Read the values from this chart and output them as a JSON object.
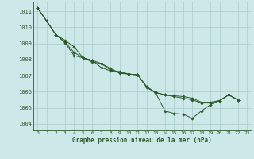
{
  "title": "Graphe pression niveau de la mer (hPa)",
  "background_color": "#cce8e8",
  "grid_color": "#aacccc",
  "line_color": "#2d5a2d",
  "marker_color": "#2d5a2d",
  "xlim": [
    -0.5,
    23.5
  ],
  "ylim": [
    1003.6,
    1011.6
  ],
  "yticks": [
    1004,
    1005,
    1006,
    1007,
    1008,
    1009,
    1010,
    1011
  ],
  "xticks": [
    0,
    1,
    2,
    3,
    4,
    5,
    6,
    7,
    8,
    9,
    10,
    11,
    12,
    13,
    14,
    15,
    16,
    17,
    18,
    19,
    20,
    21,
    22,
    23
  ],
  "series": [
    {
      "x": [
        0,
        1,
        2,
        3,
        4,
        5,
        6,
        7,
        8,
        9,
        10,
        11,
        12,
        13,
        14,
        15,
        16,
        17,
        18,
        19,
        20,
        21,
        22
      ],
      "y": [
        1011.2,
        1010.4,
        1009.55,
        1009.2,
        1008.8,
        1008.1,
        1007.85,
        1007.75,
        1007.45,
        1007.15,
        1007.1,
        1007.05,
        1006.3,
        1005.9,
        1004.8,
        1004.65,
        1004.6,
        1004.35,
        1004.8,
        1005.2,
        1005.45,
        1005.8,
        1005.5
      ]
    },
    {
      "x": [
        0,
        1,
        2,
        3,
        4,
        5,
        6,
        7,
        8,
        9,
        10,
        11,
        12,
        13,
        14,
        15,
        16,
        17,
        18,
        19,
        20,
        21,
        22
      ],
      "y": [
        1011.2,
        1010.4,
        1009.55,
        1009.05,
        1008.25,
        1008.1,
        1007.95,
        1007.75,
        1007.35,
        1007.25,
        1007.1,
        1007.05,
        1006.3,
        1005.95,
        1005.8,
        1005.75,
        1005.7,
        1005.6,
        1005.35,
        1005.35,
        1005.45,
        1005.8,
        1005.5
      ]
    },
    {
      "x": [
        0,
        2,
        3,
        4,
        5,
        6,
        7,
        8,
        9,
        10,
        11,
        12,
        13,
        14,
        15,
        16,
        17,
        18,
        19,
        20,
        21,
        22
      ],
      "y": [
        1011.2,
        1009.55,
        1009.1,
        1008.45,
        1008.1,
        1007.95,
        1007.5,
        1007.3,
        1007.2,
        1007.1,
        1007.05,
        1006.25,
        1005.95,
        1005.8,
        1005.7,
        1005.6,
        1005.5,
        1005.3,
        1005.3,
        1005.45,
        1005.8,
        1005.5
      ]
    }
  ]
}
